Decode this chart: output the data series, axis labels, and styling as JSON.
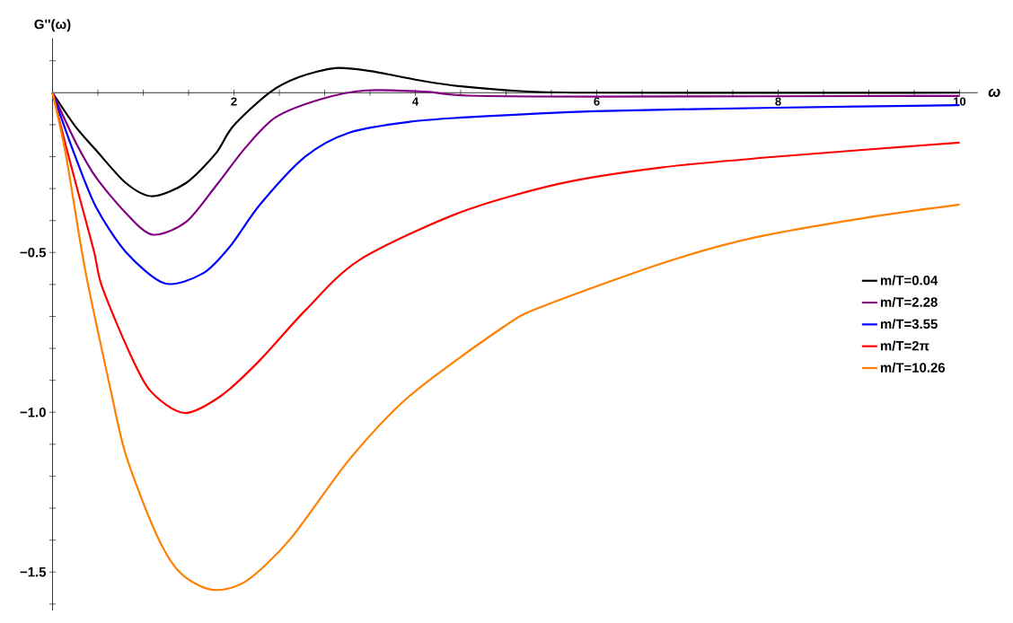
{
  "chart_data": {
    "type": "line",
    "xlabel": "ω",
    "ylabel": "G''(ω)",
    "xlim": [
      0,
      10.2
    ],
    "ylim": [
      -1.62,
      0.17
    ],
    "xticks": [
      {
        "value": 0.5,
        "label": null
      },
      {
        "value": 1,
        "label": null
      },
      {
        "value": 1.5,
        "label": null
      },
      2,
      {
        "value": 2.5,
        "label": null
      },
      {
        "value": 3,
        "label": null
      },
      {
        "value": 3.5,
        "label": null
      },
      4,
      {
        "value": 4.5,
        "label": null
      },
      {
        "value": 5,
        "label": null
      },
      {
        "value": 5.5,
        "label": null
      },
      6,
      {
        "value": 6.5,
        "label": null
      },
      {
        "value": 7,
        "label": null
      },
      {
        "value": 7.5,
        "label": null
      },
      8,
      {
        "value": 8.5,
        "label": null
      },
      {
        "value": 9,
        "label": null
      },
      {
        "value": 9.5,
        "label": null
      },
      10
    ],
    "yticks": [
      {
        "value": -1.6,
        "label": null
      },
      {
        "value": -1.5,
        "label": "−1.5"
      },
      {
        "value": -1.4,
        "label": null
      },
      {
        "value": -1.3,
        "label": null
      },
      {
        "value": -1.2,
        "label": null
      },
      {
        "value": -1.1,
        "label": null
      },
      {
        "value": -1.0,
        "label": "−1.0"
      },
      {
        "value": -0.9,
        "label": null
      },
      {
        "value": -0.8,
        "label": null
      },
      {
        "value": -0.7,
        "label": null
      },
      {
        "value": -0.6,
        "label": null
      },
      {
        "value": -0.5,
        "label": "−0.5"
      },
      {
        "value": -0.4,
        "label": null
      },
      {
        "value": -0.3,
        "label": null
      },
      {
        "value": -0.2,
        "label": null
      },
      {
        "value": -0.1,
        "label": null
      },
      {
        "value": 0.1,
        "label": null
      }
    ],
    "legend": "right",
    "grid": false,
    "marker": "none",
    "line_style": "solid",
    "series": [
      {
        "name": "m/T=0.04",
        "color": "#000000",
        "x": [
          0,
          0.25,
          0.48,
          0.81,
          1.1,
          1.47,
          1.8,
          1.99,
          2.39,
          2.72,
          3.12,
          3.5,
          3.8,
          4.1,
          4.5,
          5.16,
          6,
          10
        ],
        "values": [
          0,
          -0.105,
          -0.18,
          -0.283,
          -0.324,
          -0.283,
          -0.19,
          -0.105,
          0,
          0.049,
          0.077,
          0.068,
          0.052,
          0.036,
          0.02,
          0.005,
          0,
          0
        ]
      },
      {
        "name": "m/T=2.28",
        "color": "#800080",
        "x": [
          0,
          0.25,
          0.48,
          0.81,
          1.1,
          1.47,
          1.8,
          2.13,
          2.46,
          2.95,
          3.45,
          4.11,
          4.57,
          6,
          10
        ],
        "values": [
          0,
          -0.152,
          -0.265,
          -0.377,
          -0.444,
          -0.405,
          -0.292,
          -0.171,
          -0.077,
          -0.021,
          0.007,
          0.003,
          -0.009,
          -0.012,
          -0.01
        ]
      },
      {
        "name": "m/T=3.55",
        "color": "#0000ff",
        "x": [
          0,
          0.25,
          0.48,
          0.81,
          1.24,
          1.66,
          1.96,
          2.29,
          2.79,
          3.28,
          3.94,
          4.57,
          5.98,
          7.97,
          10
        ],
        "values": [
          0,
          -0.199,
          -0.358,
          -0.499,
          -0.597,
          -0.565,
          -0.48,
          -0.349,
          -0.199,
          -0.124,
          -0.091,
          -0.077,
          -0.058,
          -0.047,
          -0.039
        ]
      },
      {
        "name": "m/T=2π",
        "color": "#ff0000",
        "x": [
          0,
          0.15,
          0.3,
          0.46,
          0.54,
          0.81,
          1.07,
          1.45,
          1.86,
          2.29,
          2.79,
          3.38,
          4.49,
          5.6,
          6.71,
          7.98,
          10
        ],
        "values": [
          0,
          -0.17,
          -0.33,
          -0.5,
          -0.602,
          -0.789,
          -0.93,
          -1.002,
          -0.948,
          -0.836,
          -0.68,
          -0.524,
          -0.375,
          -0.284,
          -0.234,
          -0.2,
          -0.156
        ]
      },
      {
        "name": "m/T=10.26",
        "color": "#ff8000",
        "x": [
          0,
          0.15,
          0.36,
          0.64,
          0.81,
          1.14,
          1.4,
          1.75,
          2.13,
          2.62,
          3.28,
          3.94,
          4.97,
          5.4,
          6.76,
          7.76,
          9.04,
          10
        ],
        "values": [
          0,
          -0.199,
          -0.555,
          -0.929,
          -1.135,
          -1.379,
          -1.5,
          -1.555,
          -1.529,
          -1.397,
          -1.145,
          -0.948,
          -0.733,
          -0.669,
          -0.53,
          -0.452,
          -0.388,
          -0.35
        ]
      }
    ]
  }
}
